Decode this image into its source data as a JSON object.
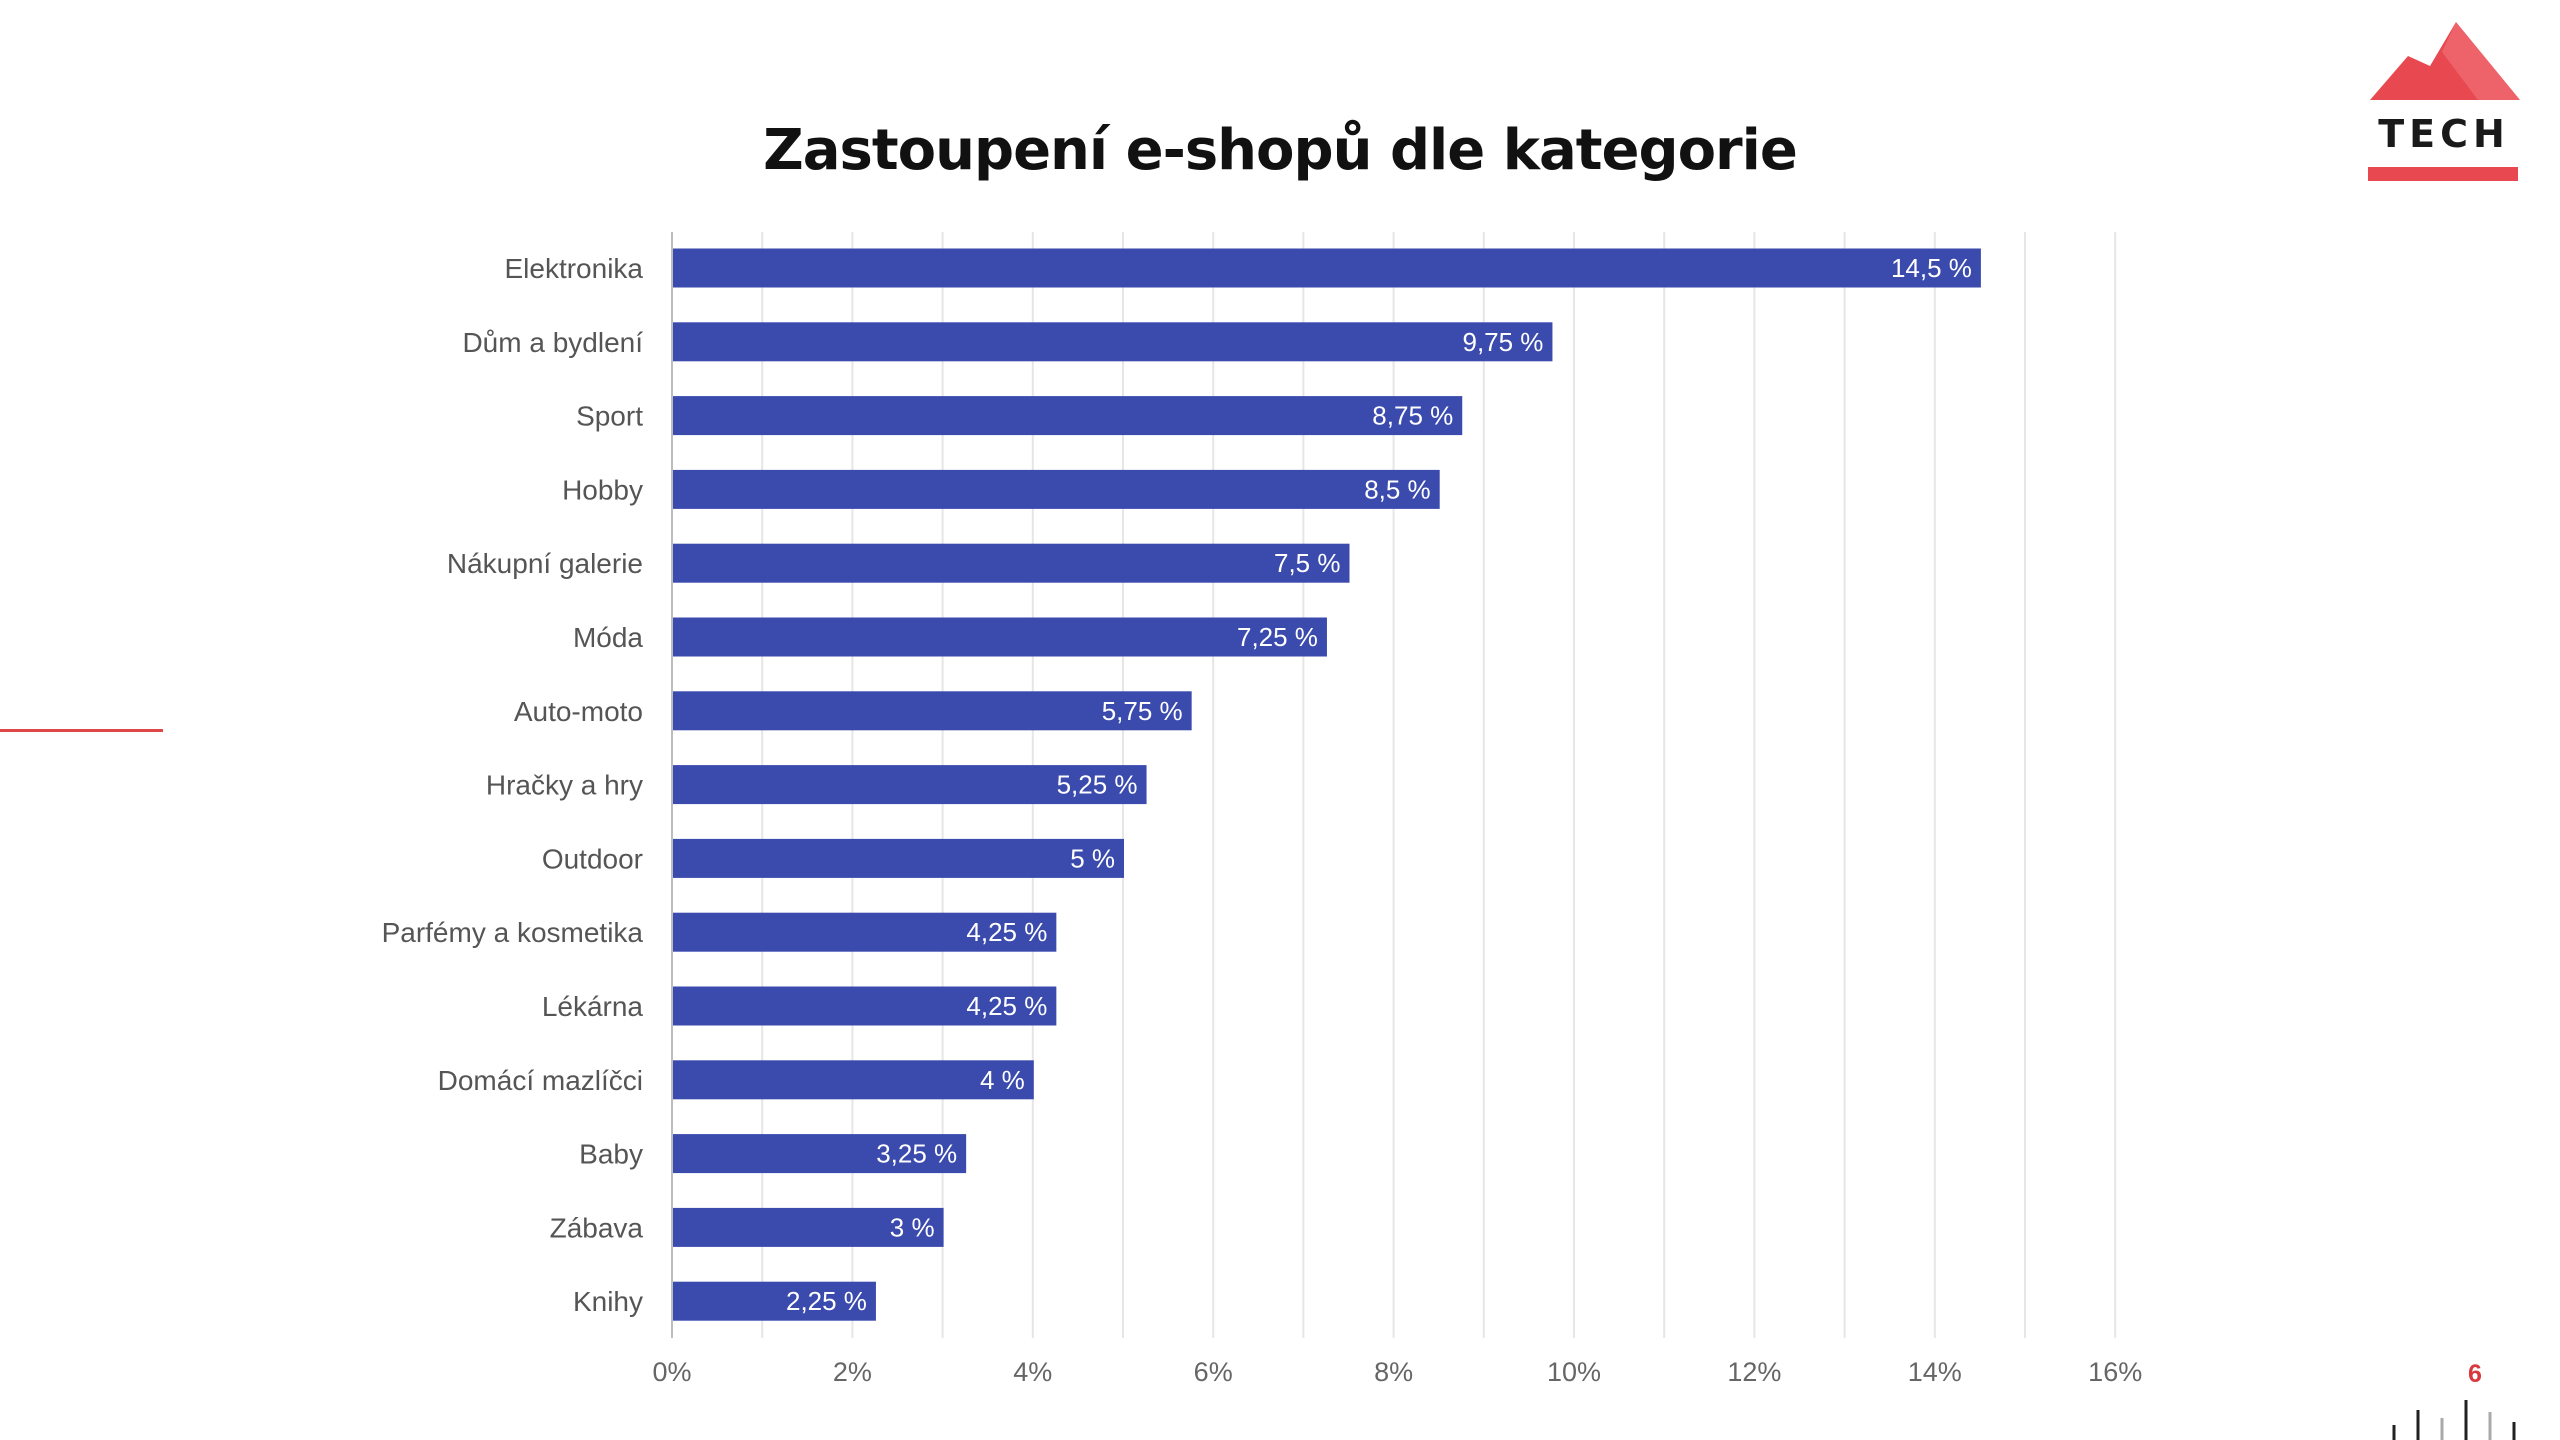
{
  "page": {
    "number": "6",
    "logo_text": "TECH"
  },
  "colors": {
    "bar": "#3a4aad",
    "accent": "#e8484f",
    "grid": "#e6e6e6"
  },
  "chart_data": {
    "type": "bar",
    "orientation": "horizontal",
    "title": "Zastoupení e-shopů dle kategorie",
    "categories": [
      "Elektronika",
      "Dům a bydlení",
      "Sport",
      "Hobby",
      "Nákupní galerie",
      "Móda",
      "Auto-moto",
      "Hračky a hry",
      "Outdoor",
      "Parfémy a kosmetika",
      "Lékárna",
      "Domácí mazlíčci",
      "Baby",
      "Zábava",
      "Knihy"
    ],
    "values": [
      14.5,
      9.75,
      8.75,
      8.5,
      7.5,
      7.25,
      5.75,
      5.25,
      5,
      4.25,
      4.25,
      4,
      3.25,
      3,
      2.25
    ],
    "data_labels": [
      "14,5 %",
      "9,75 %",
      "8,75 %",
      "8,5 %",
      "7,5 %",
      "7,25 %",
      "5,75 %",
      "5,25 %",
      "5 %",
      "4,25 %",
      "4,25 %",
      "4 %",
      "3,25 %",
      "3 %",
      "2,25 %"
    ],
    "xlim": [
      0,
      16
    ],
    "xticks": [
      0,
      2,
      4,
      6,
      8,
      10,
      12,
      14,
      16
    ],
    "xtick_labels": [
      "0%",
      "2%",
      "4%",
      "6%",
      "8%",
      "10%",
      "12%",
      "14%",
      "16%"
    ],
    "grid": true,
    "xlabel": "",
    "ylabel": ""
  }
}
